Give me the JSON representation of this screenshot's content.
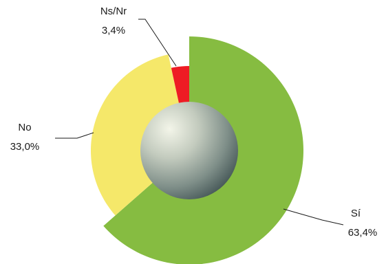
{
  "chart_data": {
    "type": "pie",
    "style": "exploded radial pie with shaded center sphere",
    "title": "",
    "legend": "none",
    "slices": [
      {
        "label": "Sí",
        "value": 63.4,
        "value_label": "63,4%",
        "color": "#86bc41"
      },
      {
        "label": "No",
        "value": 33.0,
        "value_label": "33,0%",
        "color": "#f5e86a"
      },
      {
        "label": "Ns/Nr",
        "value": 3.4,
        "value_label": "3,4%",
        "color": "#ee1c24"
      }
    ],
    "center_color": "#9aa9a0"
  }
}
